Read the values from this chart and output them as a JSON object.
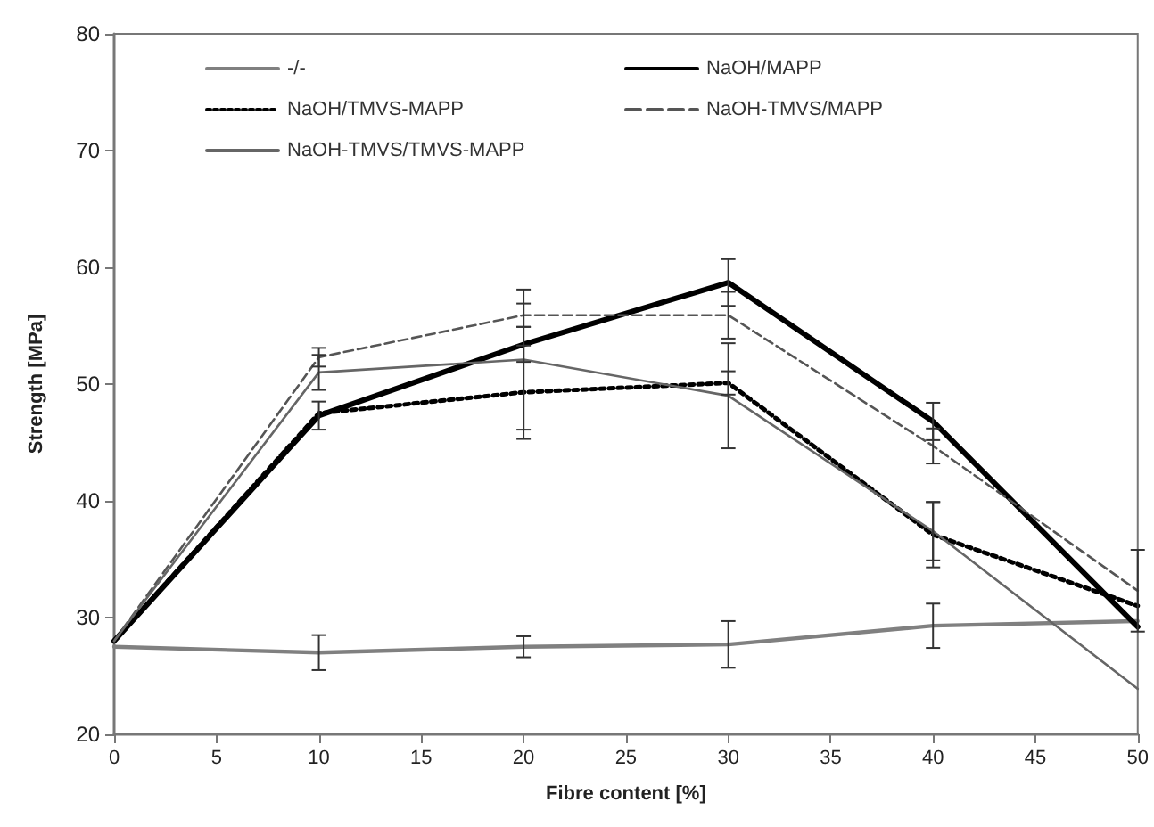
{
  "chart_data": {
    "type": "line",
    "xlabel": "Fibre content [%]",
    "ylabel": "Strength [MPa]",
    "x": [
      0,
      10,
      20,
      30,
      40,
      50
    ],
    "xlim": [
      0,
      50
    ],
    "xticks": [
      0,
      5,
      10,
      15,
      20,
      25,
      30,
      35,
      40,
      45,
      50
    ],
    "ylim": [
      20,
      80
    ],
    "yticks": [
      20,
      30,
      40,
      50,
      60,
      70,
      80
    ],
    "grid": false,
    "legend": "top",
    "marker": "none",
    "series": [
      {
        "name": "-/-",
        "color": "#808080",
        "values": [
          27.5,
          27,
          27.5,
          27.7,
          29.3,
          29.7
        ],
        "errors": [
          null,
          1.5,
          0.9,
          2,
          1.9,
          null
        ],
        "line_style": "solid"
      },
      {
        "name": "NaOH/MAPP",
        "color": "#000000",
        "values": [
          28,
          47.3,
          53.4,
          58.7,
          46.8,
          29.2
        ],
        "errors": [
          null,
          1.2,
          1.5,
          2,
          1.6,
          null
        ],
        "line_style": "solid"
      },
      {
        "name": "NaOH/TMVS-MAPP",
        "color": "#000000",
        "values": [
          28,
          47.5,
          49.3,
          50.1,
          37.1,
          31
        ],
        "errors": [
          null,
          null,
          4,
          1,
          2.8,
          null
        ],
        "line_style": "dotted"
      },
      {
        "name": "NaOH-TMVS/MAPP",
        "color": "#555555",
        "values": [
          28,
          52.3,
          55.9,
          55.9,
          44.7,
          32.3
        ],
        "errors": [
          null,
          0.8,
          1,
          2,
          1.5,
          3.5
        ],
        "line_style": "dashed"
      },
      {
        "name": "NaOH-TMVS/TMVS-MAPP",
        "color": "#666666",
        "values": [
          28,
          51,
          52.1,
          49,
          37.4,
          23.9
        ],
        "errors": [
          null,
          1.5,
          6,
          4.5,
          2.5,
          null
        ],
        "line_style": "solid"
      }
    ]
  }
}
